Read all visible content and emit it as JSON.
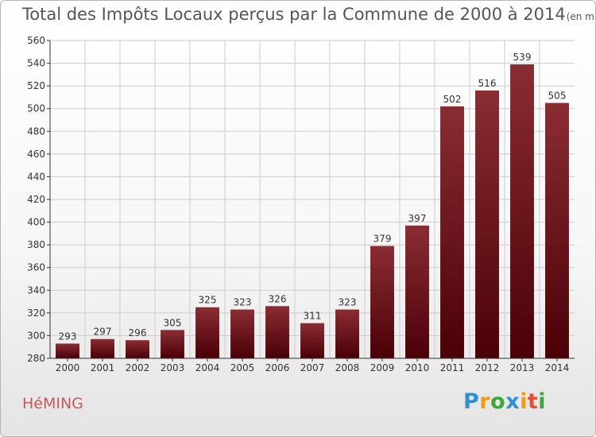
{
  "title": "Total des Impôts Locaux perçus par la Commune de 2000 à 2014",
  "title_unit": "(en milliers d'€)",
  "commune": "HéMING",
  "logo": {
    "letters": [
      "P",
      "r",
      "o",
      "x",
      "i",
      "t",
      "i"
    ],
    "colors": [
      "#2f8fd8",
      "#f39c12",
      "#3aa935",
      "#2f8fd8",
      "#f39c12",
      "#e74c3c",
      "#3aa935"
    ]
  },
  "colors": {
    "bar_light": "#8a2d33",
    "bar_dark": "#4a0006",
    "grid": "#cccccc",
    "axis": "#333333"
  },
  "chart_data": {
    "type": "bar",
    "categories": [
      "2000",
      "2001",
      "2002",
      "2003",
      "2004",
      "2005",
      "2006",
      "2007",
      "2008",
      "2009",
      "2010",
      "2011",
      "2012",
      "2013",
      "2014"
    ],
    "values": [
      293,
      297,
      296,
      305,
      325,
      323,
      326,
      311,
      323,
      379,
      397,
      502,
      516,
      539,
      505
    ],
    "yticks": [
      280,
      300,
      320,
      340,
      360,
      380,
      400,
      420,
      440,
      460,
      480,
      500,
      520,
      540,
      560
    ],
    "ylim": [
      280,
      560
    ],
    "grid": true,
    "data_labels": true
  }
}
